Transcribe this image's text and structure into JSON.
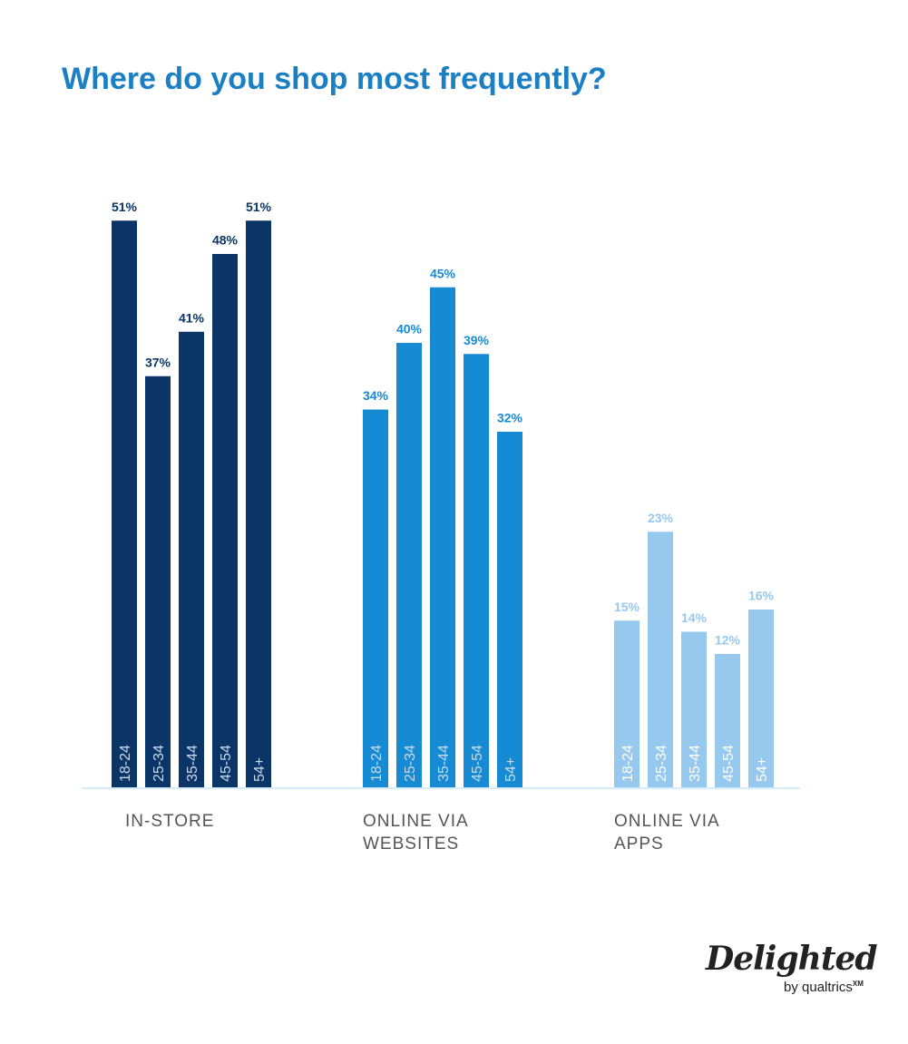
{
  "chart_data": {
    "type": "bar",
    "title": "Where do you shop most frequently?",
    "categories": [
      "18-24",
      "25-34",
      "35-44",
      "45-54",
      "54+"
    ],
    "series": [
      {
        "name": "IN-STORE",
        "color": "#0a3566",
        "values": [
          51,
          37,
          41,
          48,
          51
        ],
        "value_labels": [
          "51%",
          "37%",
          "41%",
          "48%",
          "51%"
        ]
      },
      {
        "name": "ONLINE VIA WEBSITES",
        "color": "#168bd4",
        "values": [
          34,
          40,
          45,
          39,
          32
        ],
        "value_labels": [
          "34%",
          "40%",
          "45%",
          "39%",
          "32%"
        ]
      },
      {
        "name": "ONLINE VIA APPS",
        "color": "#97c8ed",
        "values": [
          15,
          23,
          14,
          12,
          16
        ],
        "value_labels": [
          "15%",
          "23%",
          "14%",
          "12%",
          "16%"
        ]
      }
    ],
    "ylim": [
      0,
      55
    ]
  },
  "logo": {
    "name": "Delighted",
    "tagline": "by qualtrics",
    "mark": "XM"
  }
}
